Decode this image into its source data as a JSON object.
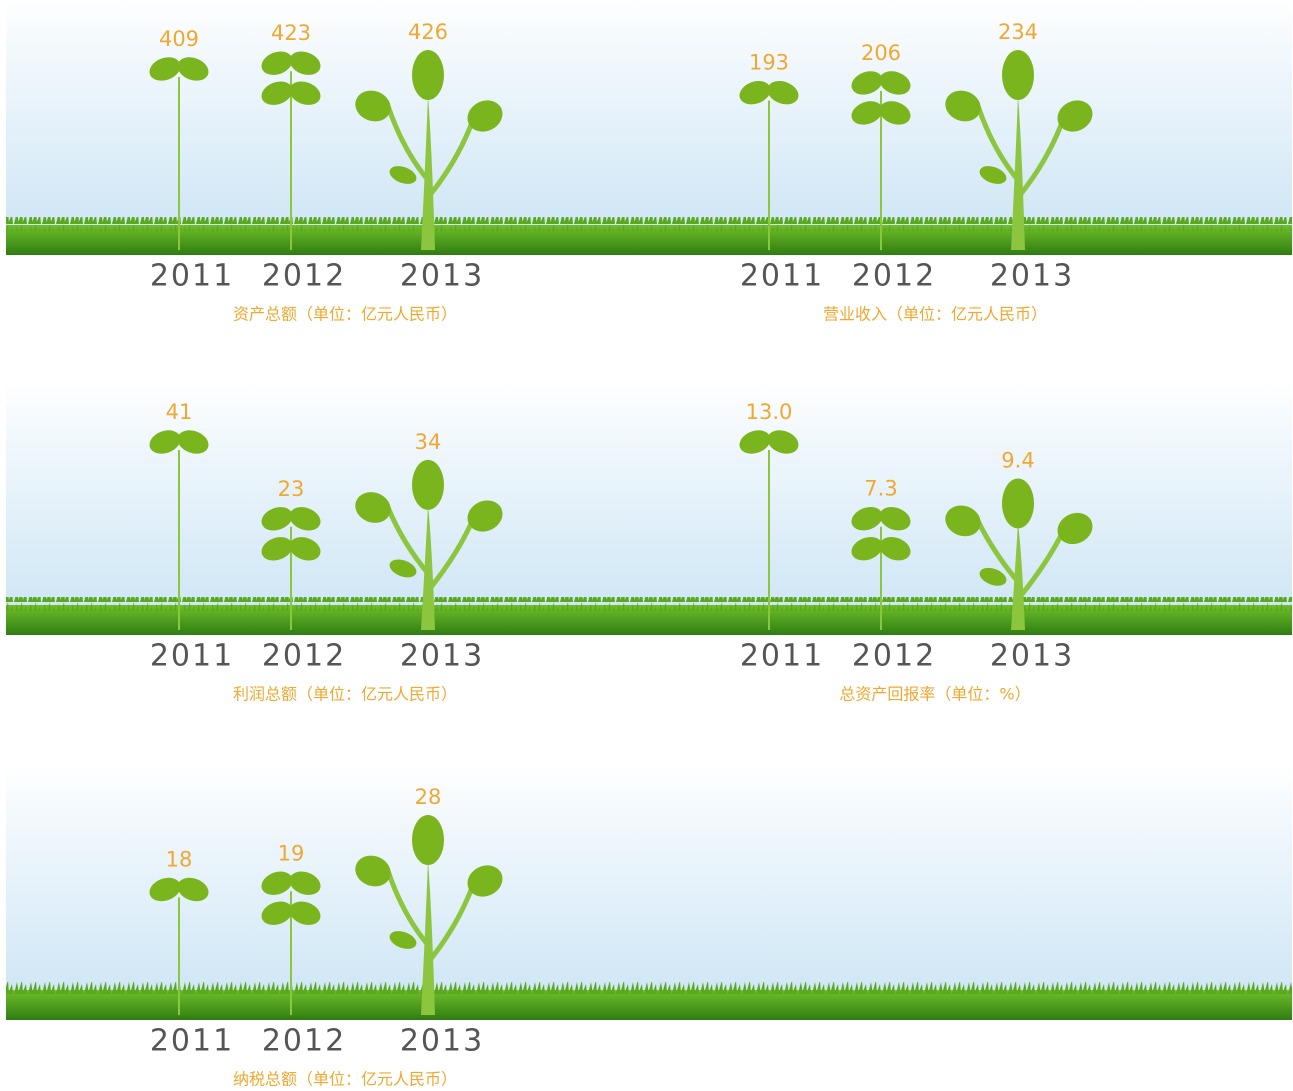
{
  "chart_data": [
    {
      "type": "plant",
      "title": "资产总额（单位：亿元人民币）",
      "categories": [
        "2011",
        "2012",
        "2013"
      ],
      "values": [
        409,
        423,
        426
      ]
    },
    {
      "type": "plant",
      "title": "营业收入（单位：亿元人民币）",
      "categories": [
        "2011",
        "2012",
        "2013"
      ],
      "values": [
        193,
        206,
        234
      ]
    },
    {
      "type": "plant",
      "title": "利润总额（单位：亿元人民币）",
      "categories": [
        "2011",
        "2012",
        "2013"
      ],
      "values": [
        41,
        23,
        34
      ]
    },
    {
      "type": "plant",
      "title": "总资产回报率（单位：%）",
      "categories": [
        "2011",
        "2012",
        "2013"
      ],
      "values": [
        13.0,
        7.3,
        9.4
      ],
      "value_labels": [
        "13.0",
        "7.3",
        "9.4"
      ]
    },
    {
      "type": "plant",
      "title": "纳税总额（单位：亿元人民币）",
      "categories": [
        "2011",
        "2012",
        "2013"
      ],
      "values": [
        18,
        19,
        28
      ]
    }
  ]
}
